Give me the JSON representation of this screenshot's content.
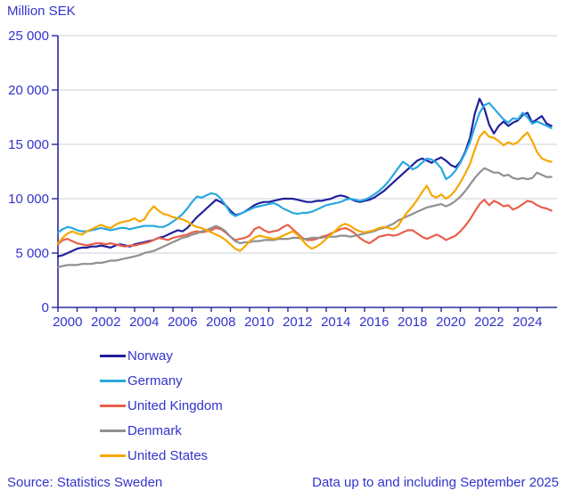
{
  "title": "Million SEK",
  "footer": {
    "source": "Source: Statistics Sweden",
    "note": "Data up to and including September 2025"
  },
  "colors": {
    "text": "#3333cc",
    "axis": "#2a28a0",
    "grid": "#ccccdd",
    "background": "#ffffff"
  },
  "chart_data": {
    "type": "line",
    "title": "Million SEK",
    "xlabel": "",
    "ylabel": "Million SEK",
    "grid": true,
    "legend_position": "bottom-left",
    "ylim": [
      0,
      25000
    ],
    "y_ticks": [
      {
        "value": 0,
        "label": "0"
      },
      {
        "value": 5000,
        "label": "5 000"
      },
      {
        "value": 10000,
        "label": "10 000"
      },
      {
        "value": 15000,
        "label": "15 000"
      },
      {
        "value": 20000,
        "label": "20 000"
      },
      {
        "value": 25000,
        "label": "25 000"
      }
    ],
    "x_start": 2000,
    "x_step": 0.25,
    "x_end": 2025.75,
    "x_labeled_years": [
      2000,
      2002,
      2004,
      2006,
      2008,
      2010,
      2012,
      2014,
      2016,
      2018,
      2020,
      2022,
      2024
    ],
    "x_minor_tick_years": [
      2000,
      2001,
      2002,
      2003,
      2004,
      2005,
      2006,
      2007,
      2008,
      2009,
      2010,
      2011,
      2012,
      2013,
      2014,
      2015,
      2016,
      2017,
      2018,
      2019,
      2020,
      2021,
      2022,
      2023,
      2024,
      2025
    ],
    "series": [
      {
        "name": "Norway",
        "color": "#21209c",
        "values": [
          4700,
          4800,
          5000,
          5200,
          5400,
          5500,
          5500,
          5600,
          5600,
          5700,
          5600,
          5500,
          5700,
          5800,
          5700,
          5600,
          5800,
          5900,
          6000,
          6100,
          6200,
          6400,
          6500,
          6700,
          6900,
          7100,
          7000,
          7300,
          7800,
          8300,
          8700,
          9100,
          9500,
          9900,
          9700,
          9400,
          8900,
          8500,
          8600,
          8800,
          9100,
          9400,
          9600,
          9700,
          9700,
          9800,
          9900,
          10000,
          10000,
          10000,
          9900,
          9800,
          9700,
          9700,
          9800,
          9800,
          9900,
          10000,
          10200,
          10300,
          10200,
          10000,
          9800,
          9700,
          9800,
          9900,
          10100,
          10400,
          10700,
          11100,
          11500,
          11900,
          12300,
          12700,
          13100,
          13500,
          13700,
          13500,
          13300,
          13600,
          13800,
          13500,
          13100,
          12900,
          13400,
          14300,
          15600,
          17800,
          19200,
          18300,
          16800,
          16000,
          16700,
          17100,
          16700,
          17000,
          17200,
          17700,
          17900,
          17000,
          17300,
          17600,
          16900,
          16700
        ]
      },
      {
        "name": "Germany",
        "color": "#29a8e0",
        "values": [
          6900,
          7200,
          7400,
          7300,
          7100,
          7000,
          7000,
          7100,
          7200,
          7300,
          7200,
          7100,
          7200,
          7300,
          7300,
          7200,
          7300,
          7400,
          7500,
          7500,
          7500,
          7400,
          7400,
          7600,
          7900,
          8200,
          8600,
          9100,
          9700,
          10200,
          10100,
          10300,
          10500,
          10400,
          10000,
          9400,
          8700,
          8400,
          8600,
          8800,
          9000,
          9200,
          9300,
          9400,
          9500,
          9600,
          9400,
          9100,
          8900,
          8700,
          8600,
          8700,
          8700,
          8800,
          9000,
          9200,
          9400,
          9500,
          9600,
          9700,
          9900,
          10000,
          9900,
          9800,
          9900,
          10100,
          10400,
          10700,
          11100,
          11600,
          12200,
          12800,
          13400,
          13100,
          12700,
          12900,
          13300,
          13700,
          13600,
          13300,
          12800,
          11800,
          12100,
          12600,
          13300,
          14200,
          15200,
          16600,
          17900,
          18600,
          18800,
          18300,
          17800,
          17300,
          17000,
          17400,
          17300,
          17900,
          17500,
          16900,
          17100,
          16900,
          16700,
          16500
        ]
      },
      {
        "name": "United Kingdom",
        "color": "#e8604a",
        "values": [
          5800,
          6200,
          6300,
          6100,
          5900,
          5800,
          5700,
          5800,
          5900,
          5900,
          5800,
          5900,
          5800,
          5700,
          5600,
          5700,
          5700,
          5800,
          5900,
          6000,
          6200,
          6400,
          6300,
          6200,
          6400,
          6500,
          6600,
          6700,
          6900,
          7000,
          6900,
          7000,
          7100,
          7300,
          7200,
          6900,
          6500,
          6200,
          6300,
          6400,
          6600,
          7200,
          7400,
          7100,
          6900,
          7000,
          7100,
          7400,
          7600,
          7200,
          6800,
          6400,
          6200,
          6200,
          6300,
          6500,
          6600,
          6800,
          7000,
          7200,
          7300,
          7100,
          6800,
          6400,
          6100,
          5900,
          6200,
          6500,
          6600,
          6700,
          6600,
          6700,
          6900,
          7100,
          7100,
          6800,
          6500,
          6300,
          6500,
          6700,
          6500,
          6200,
          6400,
          6600,
          7000,
          7500,
          8100,
          8800,
          9500,
          9900,
          9400,
          9800,
          9600,
          9300,
          9400,
          9000,
          9200,
          9500,
          9800,
          9700,
          9400,
          9200,
          9100,
          8900
        ]
      },
      {
        "name": "Denmark",
        "color": "#909090",
        "values": [
          3700,
          3800,
          3900,
          3900,
          3900,
          4000,
          4000,
          4000,
          4100,
          4100,
          4200,
          4300,
          4300,
          4400,
          4500,
          4600,
          4700,
          4800,
          5000,
          5100,
          5200,
          5400,
          5600,
          5800,
          6000,
          6200,
          6400,
          6500,
          6700,
          6800,
          7000,
          7100,
          7300,
          7500,
          7300,
          7000,
          6500,
          6100,
          5900,
          6000,
          6000,
          6100,
          6100,
          6200,
          6200,
          6200,
          6300,
          6300,
          6300,
          6400,
          6400,
          6300,
          6300,
          6400,
          6400,
          6400,
          6500,
          6500,
          6500,
          6600,
          6600,
          6500,
          6600,
          6700,
          6800,
          6900,
          7000,
          7200,
          7300,
          7500,
          7700,
          8000,
          8200,
          8400,
          8600,
          8800,
          9000,
          9200,
          9300,
          9400,
          9500,
          9300,
          9500,
          9800,
          10200,
          10700,
          11300,
          11900,
          12400,
          12800,
          12600,
          12400,
          12400,
          12100,
          12200,
          11900,
          11800,
          11900,
          11800,
          11900,
          12400,
          12200,
          12000,
          12000
        ]
      },
      {
        "name": "United States",
        "color": "#f5a800",
        "values": [
          5900,
          6400,
          6800,
          7000,
          6800,
          6700,
          7000,
          7200,
          7400,
          7600,
          7400,
          7300,
          7600,
          7800,
          7900,
          8000,
          8200,
          7900,
          8100,
          8800,
          9300,
          8900,
          8600,
          8500,
          8300,
          8200,
          8100,
          7900,
          7600,
          7400,
          7300,
          7100,
          6900,
          6700,
          6500,
          6200,
          5800,
          5400,
          5200,
          5600,
          6100,
          6400,
          6600,
          6500,
          6400,
          6300,
          6400,
          6600,
          6800,
          7000,
          6700,
          6200,
          5700,
          5400,
          5600,
          5900,
          6300,
          6700,
          7100,
          7500,
          7700,
          7500,
          7200,
          7000,
          6900,
          7000,
          7100,
          7300,
          7400,
          7300,
          7200,
          7500,
          8200,
          8800,
          9300,
          9900,
          10600,
          11200,
          10300,
          10100,
          10400,
          10000,
          10300,
          10800,
          11500,
          12300,
          13200,
          14500,
          15700,
          16200,
          15700,
          15600,
          15300,
          14900,
          15200,
          15000,
          15200,
          15700,
          16100,
          15300,
          14300,
          13700,
          13500,
          13400
        ]
      }
    ]
  }
}
